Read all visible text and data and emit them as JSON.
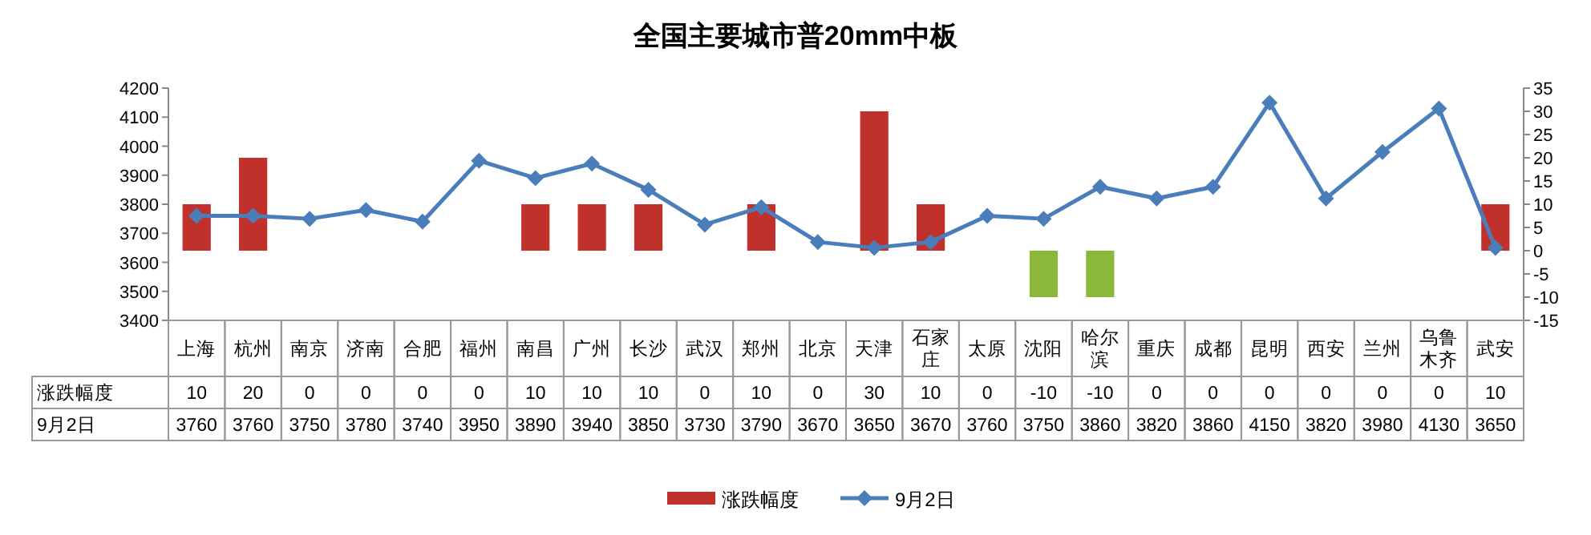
{
  "chart_data": {
    "type": "bar",
    "title": "全国主要城市普20mm中板",
    "categories": [
      "上海",
      "杭州",
      "南京",
      "济南",
      "合肥",
      "福州",
      "南昌",
      "广州",
      "长沙",
      "武汉",
      "郑州",
      "北京",
      "天津",
      "石家庄",
      "太原",
      "沈阳",
      "哈尔滨",
      "重庆",
      "成都",
      "昆明",
      "西安",
      "兰州",
      "乌鲁木齐",
      "武安"
    ],
    "series": [
      {
        "name": "涨跌幅度",
        "axis": "y2",
        "color": "#c0312b",
        "colors": [
          "#c0312b",
          "#c0312b",
          "#c0312b",
          "#c0312b",
          "#c0312b",
          "#c0312b",
          "#c0312b",
          "#c0312b",
          "#c0312b",
          "#c0312b",
          "#c0312b",
          "#c0312b",
          "#c0312b",
          "#c0312b",
          "#c0312b",
          "#8cb83a",
          "#8cb83a",
          "#c0312b",
          "#c0312b",
          "#c0312b",
          "#c0312b",
          "#c0312b",
          "#c0312b",
          "#c0312b"
        ],
        "values": [
          10,
          20,
          0,
          0,
          0,
          0,
          10,
          10,
          10,
          0,
          10,
          0,
          30,
          10,
          0,
          -10,
          -10,
          0,
          0,
          0,
          0,
          0,
          0,
          10
        ],
        "value_labels": [
          "10",
          "20",
          "0",
          "0",
          "0",
          "0",
          "10",
          "10",
          "10",
          "0",
          "10",
          "0",
          "30",
          "10",
          "0",
          "-10",
          "-10",
          "0",
          "0",
          "0",
          "0",
          "0",
          "0",
          "10"
        ]
      },
      {
        "name": "9月2日",
        "type": "line",
        "color": "#4a7ebb",
        "values": [
          3760,
          3760,
          3750,
          3780,
          3740,
          3950,
          3890,
          3940,
          3850,
          3730,
          3790,
          3670,
          3650,
          3670,
          3760,
          3750,
          3860,
          3820,
          3860,
          4150,
          3820,
          3980,
          4130,
          3650
        ],
        "value_labels": [
          "3760",
          "3760",
          "3750",
          "3780",
          "3740",
          "3950",
          "3890",
          "3940",
          "3850",
          "3730",
          "3790",
          "3670",
          "3650",
          "3670",
          "3760",
          "3750",
          "3860",
          "3820",
          "3860",
          "4150",
          "3820",
          "3980",
          "4130",
          "3650"
        ]
      }
    ],
    "ylim": [
      3400,
      4200
    ],
    "yticks": [
      3400,
      3500,
      3600,
      3700,
      3800,
      3900,
      4000,
      4100,
      4200
    ],
    "y2lim": [
      -15,
      35
    ],
    "y2ticks": [
      -15,
      -10,
      -5,
      0,
      5,
      10,
      15,
      20,
      25,
      30,
      35
    ],
    "marker": "diamond",
    "legend": "bottom"
  }
}
